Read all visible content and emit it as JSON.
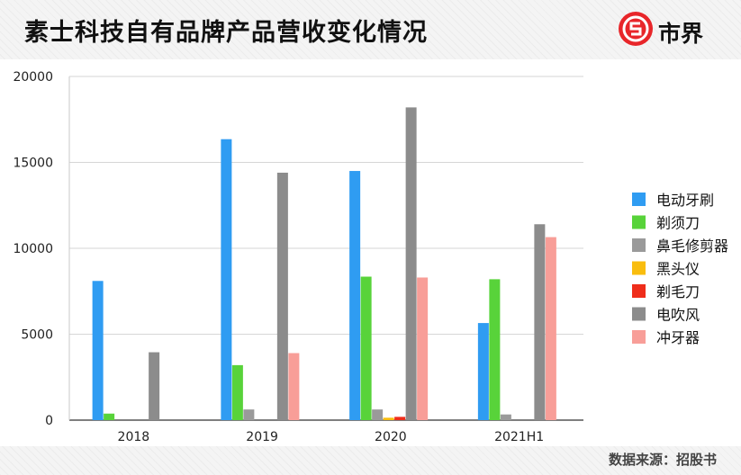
{
  "header": {
    "title": "素士科技自有品牌产品营收变化情况",
    "logo_text": "市界"
  },
  "source": "数据来源：招股书",
  "chart_data": {
    "type": "bar",
    "categories": [
      "2018",
      "2019",
      "2020",
      "2021H1"
    ],
    "ylim": [
      0,
      20000
    ],
    "yticks": [
      0,
      5000,
      10000,
      15000,
      20000
    ],
    "grid": true,
    "legend_position": "right",
    "series": [
      {
        "name": "电动牙刷",
        "color": "#2f9cf2",
        "values": [
          8100,
          16350,
          14500,
          5650
        ]
      },
      {
        "name": "剃须刀",
        "color": "#58d33a",
        "values": [
          380,
          3200,
          8350,
          8200
        ]
      },
      {
        "name": "鼻毛修剪器",
        "color": "#9a9a9a",
        "values": [
          0,
          620,
          620,
          330
        ]
      },
      {
        "name": "黑头仪",
        "color": "#f9bd0e",
        "values": [
          0,
          0,
          140,
          0
        ]
      },
      {
        "name": "剃毛刀",
        "color": "#ef2d1b",
        "values": [
          0,
          0,
          190,
          0
        ]
      },
      {
        "name": "电吹风",
        "color": "#8c8c8c",
        "values": [
          3950,
          14400,
          18200,
          11400
        ]
      },
      {
        "name": "冲牙器",
        "color": "#f89e98",
        "values": [
          0,
          3900,
          8300,
          10650
        ]
      }
    ]
  }
}
